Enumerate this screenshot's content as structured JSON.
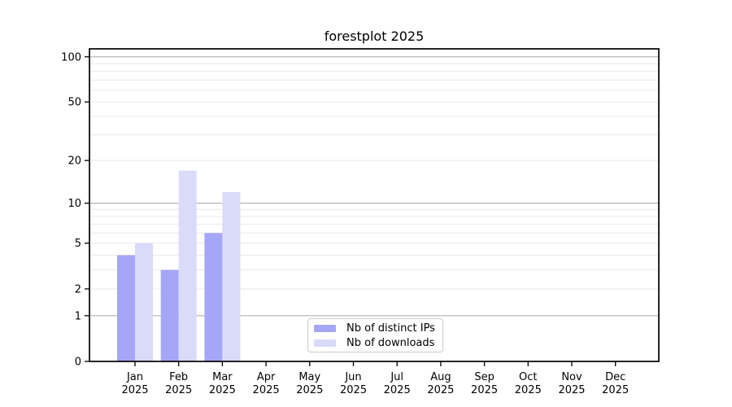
{
  "title": "forestplot 2025",
  "chart_data": {
    "type": "bar",
    "title": "forestplot 2025",
    "categories": [
      "Jan",
      "Feb",
      "Mar",
      "Apr",
      "May",
      "Jun",
      "Jul",
      "Aug",
      "Sep",
      "Oct",
      "Nov",
      "Dec"
    ],
    "category_year": "2025",
    "series": [
      {
        "name": "Nb of distinct IPs",
        "color": "#a6a6f6",
        "values": [
          4,
          3,
          6,
          0,
          0,
          0,
          0,
          0,
          0,
          0,
          0,
          0
        ]
      },
      {
        "name": "Nb of downloads",
        "color": "#dadaf9",
        "values": [
          5,
          17,
          12,
          0,
          0,
          0,
          0,
          0,
          0,
          0,
          0,
          0
        ]
      }
    ],
    "xlabel": "",
    "ylabel": "",
    "yscale": "log1p",
    "ylim": [
      0,
      113
    ],
    "yticks": [
      0,
      1,
      2,
      5,
      10,
      20,
      50,
      100
    ],
    "major_gridlines": [
      1,
      10,
      100
    ],
    "minor_gridlines": [
      2,
      3,
      4,
      5,
      6,
      7,
      8,
      9,
      20,
      30,
      40,
      50,
      60,
      70,
      80,
      90
    ],
    "grid": true,
    "legend_position": "lower center"
  },
  "legend": {
    "items": [
      {
        "label": "Nb of distinct IPs",
        "color": "#a6a6f6"
      },
      {
        "label": "Nb of downloads",
        "color": "#dadaf9"
      }
    ]
  },
  "colors": {
    "background": "#ffffff",
    "spine": "#000000",
    "tick": "#000000",
    "text": "#000000",
    "major_grid": "#b0b0b0",
    "minor_grid": "#e9e9e9",
    "legend_border": "#cccccc"
  }
}
